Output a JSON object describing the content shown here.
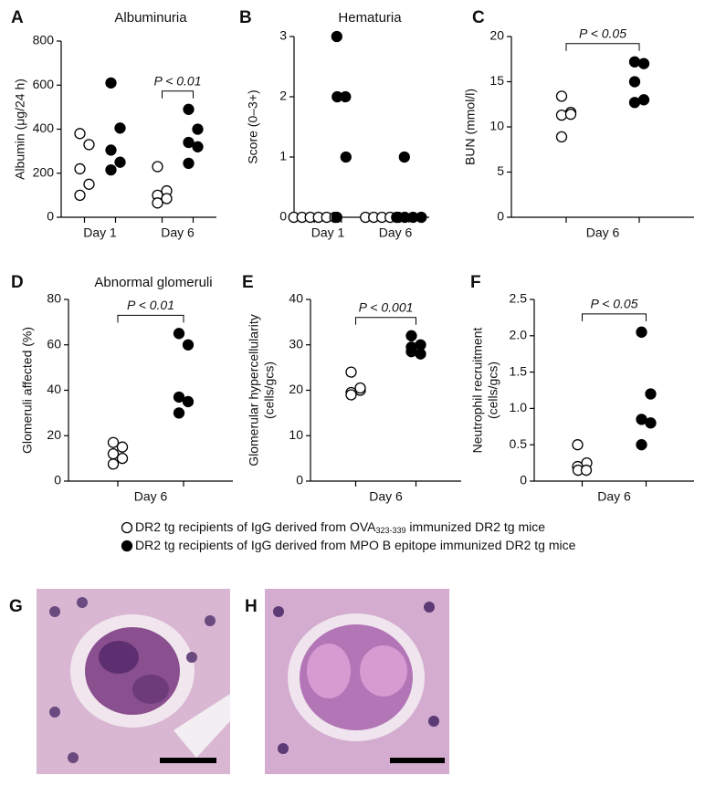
{
  "chart_data": [
    {
      "type": "dot",
      "panel": "A",
      "title": "Albuminuria",
      "ylabel": [
        "Albumin (μg/24 h)"
      ],
      "categories": [
        "Day 1",
        "Day 6"
      ],
      "ylim": [
        0,
        800
      ],
      "yticks": [
        0,
        200,
        400,
        600,
        800
      ],
      "series": [
        {
          "fill": "white",
          "values": [
            [
              380,
              330,
              220,
              150,
              100
            ],
            [
              230,
              120,
              100,
              85,
              65
            ]
          ]
        },
        {
          "fill": "black",
          "values": [
            [
              610,
              405,
              305,
              250,
              215
            ],
            [
              490,
              400,
              340,
              320,
              245
            ]
          ]
        }
      ],
      "annotations": [
        null,
        "P < 0.01"
      ]
    },
    {
      "type": "dot",
      "panel": "B",
      "title": "Hematuria",
      "ylabel": [
        "Score (0–3+)"
      ],
      "categories": [
        "Day 1",
        "Day 6"
      ],
      "ylim": [
        0,
        3
      ],
      "yticks": [
        0,
        1,
        2,
        3
      ],
      "series": [
        {
          "fill": "white",
          "values": [
            [
              0,
              0,
              0,
              0,
              0,
              0
            ],
            [
              0,
              0,
              0,
              0,
              0
            ]
          ]
        },
        {
          "fill": "black",
          "values": [
            [
              3,
              2,
              2,
              1,
              0
            ],
            [
              1,
              0,
              0,
              0,
              0
            ]
          ]
        }
      ]
    },
    {
      "type": "dot",
      "panel": "C",
      "ylabel": [
        "BUN (mmol/l)"
      ],
      "categories": [
        "Day 6"
      ],
      "ylim": [
        0,
        20
      ],
      "yticks": [
        0,
        5,
        10,
        15,
        20
      ],
      "series": [
        {
          "fill": "white",
          "values": [
            [
              13.4,
              11.6,
              11.3,
              11.4,
              8.9
            ]
          ]
        },
        {
          "fill": "black",
          "values": [
            [
              17.2,
              17.0,
              15.0,
              13.0,
              12.7
            ]
          ]
        }
      ],
      "annotations": [
        "P < 0.05"
      ]
    },
    {
      "type": "dot",
      "panel": "D",
      "title": "Abnormal glomeruli",
      "ylabel": [
        "Glomeruli affected (%)"
      ],
      "categories": [
        "Day 6"
      ],
      "ylim": [
        0,
        80
      ],
      "yticks": [
        0,
        20,
        40,
        60,
        80
      ],
      "series": [
        {
          "fill": "white",
          "values": [
            [
              17,
              15,
              12,
              10,
              7.5
            ]
          ]
        },
        {
          "fill": "black",
          "values": [
            [
              65,
              60,
              37,
              35,
              30
            ]
          ]
        }
      ],
      "annotations": [
        "P < 0.01"
      ]
    },
    {
      "type": "dot",
      "panel": "E",
      "ylabel": [
        "Glomerular hypercellularity",
        "(cells/gcs)"
      ],
      "categories": [
        "Day 6"
      ],
      "ylim": [
        0,
        40
      ],
      "yticks": [
        0,
        10,
        20,
        30,
        40
      ],
      "series": [
        {
          "fill": "white",
          "values": [
            [
              24,
              20,
              19.5,
              20.5,
              19
            ]
          ]
        },
        {
          "fill": "black",
          "values": [
            [
              32,
              30,
              29.5,
              28,
              28.5
            ]
          ]
        }
      ],
      "annotations": [
        "P < 0.001"
      ]
    },
    {
      "type": "dot",
      "panel": "F",
      "ylabel": [
        "Neutrophil recruitment",
        "(cells/gcs)"
      ],
      "categories": [
        "Day 6"
      ],
      "ylim": [
        0,
        2.5
      ],
      "yticks": [
        0,
        0.5,
        {
          "value": 1,
          "label": "1.0"
        },
        1.5,
        {
          "value": 2,
          "label": "2.0"
        },
        2.5
      ],
      "series": [
        {
          "fill": "white",
          "values": [
            [
              0.5,
              0.25,
              0.2,
              0.15,
              0.15
            ]
          ]
        },
        {
          "fill": "black",
          "values": [
            [
              2.05,
              1.2,
              0.85,
              0.8,
              0.5
            ]
          ]
        }
      ],
      "annotations": [
        "P < 0.05"
      ]
    }
  ],
  "legend": [
    {
      "parts": [
        "DR2 tg recipients of IgG derived from OVA",
        "323-339",
        " immunized DR2 tg mice"
      ]
    },
    {
      "parts": [
        "DR2 tg recipients of IgG derived from MPO B epitope immunized DR2 tg mice"
      ]
    }
  ],
  "images": [
    {
      "label": "G"
    },
    {
      "label": "H"
    }
  ]
}
